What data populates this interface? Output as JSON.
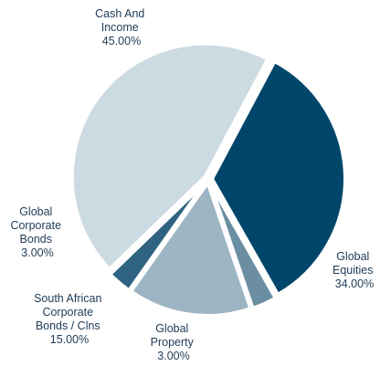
{
  "chart_data": {
    "type": "pie",
    "title": "",
    "legend": "none",
    "slices": [
      {
        "key": "cash",
        "label": [
          "Cash And",
          "Income"
        ],
        "value_label": "45.00%",
        "value": 45.0,
        "color": "#ccdae2"
      },
      {
        "key": "equities",
        "label": [
          "Global",
          "Equities"
        ],
        "value_label": "34.00%",
        "value": 34.0,
        "color": "#00466b"
      },
      {
        "key": "property",
        "label": [
          "Global",
          "Property"
        ],
        "value_label": "3.00%",
        "value": 3.0,
        "color": "#6b8ea3"
      },
      {
        "key": "sa_bonds",
        "label": [
          "South African",
          "Corporate",
          "Bonds / Clns"
        ],
        "value_label": "15.00%",
        "value": 15.0,
        "color": "#9db5c3"
      },
      {
        "key": "corp_bonds",
        "label": [
          "Global",
          "Corporate",
          "Bonds"
        ],
        "value_label": "3.00%",
        "value": 3.0,
        "color": "#2f6381"
      }
    ]
  }
}
